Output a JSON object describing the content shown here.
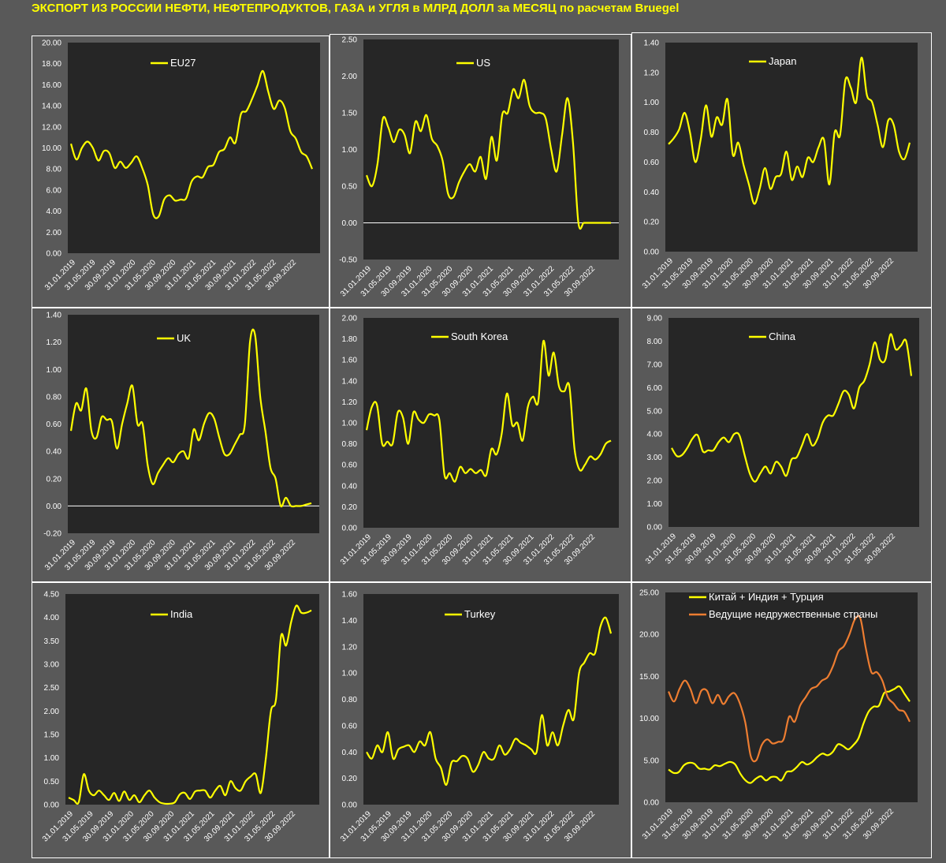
{
  "title": "ЭКСПОРТ ИЗ РОССИИ НЕФТИ, НЕФТЕПРОДУКТОВ, ГАЗА и УГЛЯ в МЛРД ДОЛЛ за МЕСЯЦ по расчетам Bruegel",
  "colors": {
    "background": "#595959",
    "plot_area": "#262626",
    "primary_series": "#ffff00",
    "secondary_series": "#ed7d31",
    "axis_text": "#ffffff"
  },
  "chart_data": [
    {
      "type": "line",
      "legend": [
        "EU27"
      ],
      "ylim": [
        0,
        20
      ],
      "ticks": [
        0,
        2,
        4,
        6,
        8,
        10,
        12,
        14,
        16,
        18,
        20
      ],
      "dec": 2,
      "x_labels": [
        "31.01.2019",
        "31.05.2019",
        "30.09.2019",
        "31.01.2020",
        "31.05.2020",
        "30.09.2020",
        "31.01.2021",
        "31.05.2021",
        "30.09.2021",
        "31.01.2022",
        "31.05.2022",
        "30.09.2022"
      ],
      "series": [
        {
          "name": "EU27",
          "color": "#ffff00",
          "values": [
            10.4,
            8.9,
            10.0,
            10.6,
            10.0,
            8.8,
            9.7,
            9.5,
            8.1,
            8.7,
            8.1,
            8.6,
            9.2,
            8.1,
            6.5,
            3.7,
            3.5,
            5.1,
            5.5,
            5.0,
            5.1,
            5.2,
            6.8,
            7.3,
            7.2,
            8.2,
            8.4,
            9.6,
            9.9,
            11.0,
            10.5,
            13.2,
            13.5,
            14.6,
            15.9,
            17.3,
            15.3,
            13.7,
            14.5,
            13.8,
            11.6,
            10.9,
            9.6,
            9.2,
            8.0
          ]
        }
      ]
    },
    {
      "type": "line",
      "legend": [
        "US"
      ],
      "ylim": [
        -0.5,
        2.5
      ],
      "ticks": [
        -0.5,
        0,
        0.5,
        1,
        1.5,
        2,
        2.5
      ],
      "dec": 2,
      "zero_line": true,
      "x_labels": [
        "31.01.2019",
        "31.05.2019",
        "30.09.2019",
        "31.01.2020",
        "31.05.2020",
        "30.09.2020",
        "31.01.2021",
        "31.05.2021",
        "30.09.2021",
        "31.01.2022",
        "31.05.2022",
        "30.09.2022"
      ],
      "series": [
        {
          "name": "US",
          "color": "#ffff00",
          "values": [
            0.65,
            0.5,
            0.8,
            1.42,
            1.3,
            1.1,
            1.27,
            1.2,
            0.95,
            1.38,
            1.25,
            1.47,
            1.15,
            1.05,
            0.85,
            0.4,
            0.35,
            0.55,
            0.7,
            0.8,
            0.7,
            0.9,
            0.6,
            1.17,
            0.85,
            1.48,
            1.5,
            1.82,
            1.7,
            1.95,
            1.6,
            1.5,
            1.5,
            1.42,
            1.0,
            0.7,
            1.2,
            1.7,
            1.1,
            0.0,
            0.0,
            0.0,
            0.0,
            0.0,
            0.0,
            0.0
          ]
        }
      ]
    },
    {
      "type": "line",
      "legend": [
        "Japan"
      ],
      "ylim": [
        0,
        1.4
      ],
      "ticks": [
        0,
        0.2,
        0.4,
        0.6,
        0.8,
        1,
        1.2,
        1.4
      ],
      "dec": 2,
      "x_labels": [
        "31.01.2019",
        "31.05.2019",
        "30.09.2019",
        "31.01.2020",
        "31.05.2020",
        "30.09.2020",
        "31.01.2021",
        "31.05.2021",
        "30.09.2021",
        "31.01.2022",
        "31.05.2022",
        "30.09.2022"
      ],
      "series": [
        {
          "name": "Japan",
          "color": "#ffff00",
          "values": [
            0.72,
            0.76,
            0.82,
            0.93,
            0.8,
            0.6,
            0.75,
            0.98,
            0.77,
            0.9,
            0.85,
            1.02,
            0.65,
            0.73,
            0.58,
            0.45,
            0.32,
            0.42,
            0.56,
            0.42,
            0.5,
            0.52,
            0.67,
            0.48,
            0.57,
            0.5,
            0.63,
            0.6,
            0.7,
            0.75,
            0.45,
            0.8,
            0.78,
            1.15,
            1.1,
            1.0,
            1.3,
            1.05,
            1.0,
            0.85,
            0.7,
            0.88,
            0.85,
            0.67,
            0.62,
            0.73
          ]
        }
      ]
    },
    {
      "type": "line",
      "legend": [
        "UK"
      ],
      "ylim": [
        -0.2,
        1.4
      ],
      "ticks": [
        -0.2,
        0,
        0.2,
        0.4,
        0.6,
        0.8,
        1,
        1.2,
        1.4
      ],
      "dec": 2,
      "zero_line": true,
      "x_labels": [
        "31.01.2019",
        "31.05.2019",
        "30.09.2019",
        "31.01.2020",
        "31.05.2020",
        "30.09.2020",
        "31.01.2021",
        "31.05.2021",
        "30.09.2021",
        "31.01.2022",
        "31.05.2022",
        "30.09.2022"
      ],
      "series": [
        {
          "name": "UK",
          "color": "#ffff00",
          "values": [
            0.55,
            0.75,
            0.7,
            0.86,
            0.55,
            0.5,
            0.65,
            0.63,
            0.62,
            0.42,
            0.6,
            0.75,
            0.88,
            0.6,
            0.6,
            0.3,
            0.16,
            0.24,
            0.3,
            0.35,
            0.32,
            0.38,
            0.4,
            0.35,
            0.56,
            0.48,
            0.6,
            0.68,
            0.64,
            0.5,
            0.38,
            0.38,
            0.45,
            0.52,
            0.6,
            1.2,
            1.25,
            0.8,
            0.55,
            0.28,
            0.2,
            0.0,
            0.06,
            0.0,
            0.0,
            0.0,
            0.01,
            0.02
          ]
        }
      ]
    },
    {
      "type": "line",
      "legend": [
        "South Korea"
      ],
      "ylim": [
        0,
        2
      ],
      "ticks": [
        0,
        0.2,
        0.4,
        0.6,
        0.8,
        1,
        1.2,
        1.4,
        1.6,
        1.8,
        2
      ],
      "dec": 2,
      "x_labels": [
        "31.01.2019",
        "31.05.2019",
        "30.09.2019",
        "31.01.2020",
        "31.05.2020",
        "30.09.2020",
        "31.01.2021",
        "31.05.2021",
        "30.09.2021",
        "31.01.2022",
        "31.05.2022",
        "30.09.2022"
      ],
      "series": [
        {
          "name": "South Korea",
          "color": "#ffff00",
          "values": [
            0.93,
            1.15,
            1.17,
            0.8,
            0.82,
            0.8,
            1.1,
            1.05,
            0.8,
            1.1,
            1.03,
            1.0,
            1.08,
            1.07,
            1.03,
            0.5,
            0.52,
            0.44,
            0.58,
            0.52,
            0.56,
            0.52,
            0.55,
            0.5,
            0.75,
            0.7,
            0.9,
            1.28,
            0.98,
            1.0,
            0.83,
            1.15,
            1.25,
            1.2,
            1.78,
            1.45,
            1.67,
            1.35,
            1.3,
            1.35,
            0.75,
            0.55,
            0.6,
            0.68,
            0.65,
            0.7,
            0.8,
            0.83
          ]
        }
      ]
    },
    {
      "type": "line",
      "legend": [
        "China"
      ],
      "ylim": [
        0,
        9
      ],
      "ticks": [
        0,
        1,
        2,
        3,
        4,
        5,
        6,
        7,
        8,
        9
      ],
      "dec": 2,
      "x_labels": [
        "31.01.2019",
        "31.05.2019",
        "30.09.2019",
        "31.01.2020",
        "31.05.2020",
        "30.09.2020",
        "31.01.2021",
        "31.05.2021",
        "30.09.2021",
        "31.01.2022",
        "31.05.2022",
        "30.09.2022"
      ],
      "series": [
        {
          "name": "China",
          "color": "#ffff00",
          "values": [
            3.4,
            3.05,
            3.1,
            3.4,
            3.8,
            3.95,
            3.25,
            3.3,
            3.3,
            3.65,
            3.85,
            3.65,
            4.0,
            3.95,
            3.1,
            2.3,
            1.95,
            2.3,
            2.6,
            2.3,
            2.8,
            2.6,
            2.2,
            2.9,
            3.0,
            3.5,
            4.0,
            3.5,
            3.8,
            4.5,
            4.8,
            4.8,
            5.3,
            5.85,
            5.7,
            5.1,
            6.0,
            6.3,
            7.0,
            7.95,
            7.2,
            7.2,
            8.3,
            7.65,
            7.8,
            8.0,
            6.5
          ]
        }
      ]
    },
    {
      "type": "line",
      "legend": [
        "India"
      ],
      "ylim": [
        0,
        4.5
      ],
      "ticks": [
        0,
        0.5,
        1,
        1.5,
        2,
        2.5,
        3,
        3.5,
        4,
        4.5
      ],
      "dec": 2,
      "x_labels": [
        "31.01.2019",
        "31.05.2019",
        "30.09.2019",
        "31.01.2020",
        "31.05.2020",
        "30.09.2020",
        "31.01.2021",
        "31.05.2021",
        "30.09.2021",
        "31.01.2022",
        "31.05.2022",
        "30.09.2022"
      ],
      "series": [
        {
          "name": "India",
          "color": "#ffff00",
          "values": [
            0.15,
            0.1,
            0.05,
            0.65,
            0.3,
            0.2,
            0.3,
            0.2,
            0.1,
            0.25,
            0.08,
            0.28,
            0.1,
            0.2,
            0.05,
            0.2,
            0.3,
            0.15,
            0.05,
            0.02,
            0.02,
            0.05,
            0.22,
            0.25,
            0.12,
            0.28,
            0.3,
            0.3,
            0.15,
            0.3,
            0.4,
            0.2,
            0.5,
            0.35,
            0.3,
            0.5,
            0.6,
            0.65,
            0.25,
            1.0,
            2.0,
            2.25,
            3.6,
            3.4,
            3.9,
            4.25,
            4.1,
            4.1,
            4.15
          ]
        }
      ]
    },
    {
      "type": "line",
      "legend": [
        "Turkey"
      ],
      "ylim": [
        0,
        1.6
      ],
      "ticks": [
        0,
        0.2,
        0.4,
        0.6,
        0.8,
        1,
        1.2,
        1.4,
        1.6
      ],
      "dec": 2,
      "x_labels": [
        "31.01.2019",
        "31.05.2019",
        "30.09.2019",
        "31.01.2020",
        "31.05.2020",
        "30.09.2020",
        "31.01.2021",
        "31.05.2021",
        "30.09.2021",
        "31.01.2022",
        "31.05.2022",
        "30.09.2022"
      ],
      "series": [
        {
          "name": "Turkey",
          "color": "#ffff00",
          "values": [
            0.4,
            0.35,
            0.45,
            0.4,
            0.55,
            0.35,
            0.42,
            0.44,
            0.45,
            0.4,
            0.48,
            0.45,
            0.55,
            0.35,
            0.28,
            0.15,
            0.32,
            0.33,
            0.37,
            0.35,
            0.25,
            0.3,
            0.4,
            0.35,
            0.35,
            0.45,
            0.38,
            0.42,
            0.5,
            0.47,
            0.45,
            0.42,
            0.4,
            0.68,
            0.45,
            0.55,
            0.45,
            0.6,
            0.72,
            0.65,
            1.0,
            1.08,
            1.15,
            1.15,
            1.35,
            1.42,
            1.3
          ]
        }
      ]
    },
    {
      "type": "line",
      "legend": [
        "Китай + Индия + Турция",
        "Ведущие недружественные страны"
      ],
      "ylim": [
        0,
        25
      ],
      "ticks": [
        0,
        5,
        10,
        15,
        20,
        25
      ],
      "dec": 2,
      "x_labels": [
        "31.01.2019",
        "31.05.2019",
        "30.09.2019",
        "31.01.2020",
        "31.05.2020",
        "30.09.2020",
        "31.01.2021",
        "31.05.2021",
        "30.09.2021",
        "31.01.2022",
        "31.05.2022",
        "30.09.2022"
      ],
      "series": [
        {
          "name": "Китай + Индия + Турция",
          "color": "#ffff00",
          "values": [
            3.9,
            3.5,
            3.6,
            4.4,
            4.7,
            4.6,
            4.0,
            4.0,
            3.9,
            4.4,
            4.3,
            4.6,
            4.8,
            4.5,
            3.4,
            2.6,
            2.3,
            2.8,
            3.1,
            2.6,
            3.0,
            3.0,
            2.6,
            3.6,
            3.7,
            4.2,
            4.8,
            4.5,
            4.8,
            5.4,
            5.8,
            5.6,
            6.0,
            6.9,
            6.7,
            6.3,
            6.8,
            7.6,
            9.4,
            10.8,
            11.4,
            11.5,
            13.0,
            13.2,
            13.5,
            13.8,
            12.9,
            12.0
          ]
        },
        {
          "name": "Ведущие недружественные страны",
          "color": "#ed7d31",
          "values": [
            13.2,
            12.0,
            13.5,
            14.5,
            13.5,
            11.8,
            13.3,
            13.3,
            11.8,
            12.8,
            11.7,
            12.6,
            13.0,
            11.8,
            9.5,
            5.5,
            5.0,
            6.8,
            7.5,
            7.0,
            7.2,
            7.5,
            10.2,
            9.6,
            11.5,
            12.5,
            13.5,
            13.8,
            14.5,
            14.9,
            16.2,
            18.0,
            18.6,
            20.0,
            21.8,
            21.9,
            18.3,
            15.5,
            15.5,
            14.5,
            12.5,
            11.8,
            11.0,
            10.8,
            9.6
          ]
        }
      ]
    }
  ]
}
